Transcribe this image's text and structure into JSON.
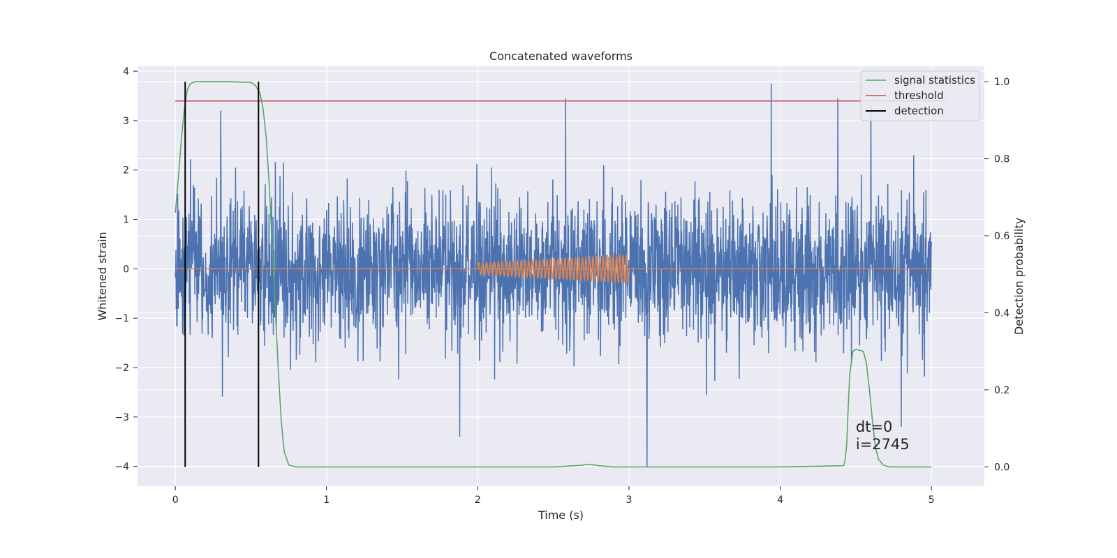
{
  "chart_data": {
    "type": "line",
    "title": "Concatenated waveforms",
    "xlabel": "Time (s)",
    "ylabel": "Whitened strain",
    "y2label": "Detection probability",
    "xlim": [
      -0.25,
      5.35
    ],
    "ylim": [
      -4.4,
      4.1
    ],
    "y2lim": [
      -0.05,
      1.04
    ],
    "x_ticks": [
      0,
      1,
      2,
      3,
      4,
      5
    ],
    "y_ticks": [
      -4,
      -3,
      -2,
      -1,
      0,
      1,
      2,
      3,
      4
    ],
    "y2_ticks": [
      0.0,
      0.2,
      0.4,
      0.6,
      0.8,
      1.0
    ],
    "y2_tick_labels": [
      "0.0",
      "0.2",
      "0.4",
      "0.6",
      "0.8",
      "1.0"
    ],
    "grid": true,
    "legend_position": "top-right",
    "annotations": [
      "dt=0",
      "i=2745"
    ],
    "colors": {
      "background": "#eaeaf2",
      "grid": "#ffffff",
      "strain": "#4c72b0",
      "injection": "#dd8452",
      "signal_statistics": "#55a868",
      "threshold": "#c44e52",
      "detection": "#000000"
    },
    "series": [
      {
        "name": "",
        "axis": "left",
        "kind": "noise",
        "x_range": [
          0,
          5
        ],
        "typical_amplitude": 2.0,
        "notable_peaks": [
          [
            0.3,
            3.2
          ],
          [
            2.58,
            3.45
          ],
          [
            3.94,
            3.75
          ],
          [
            4.38,
            3.45
          ],
          [
            4.6,
            3.3
          ],
          [
            1.88,
            -3.4
          ],
          [
            3.12,
            -4.0
          ],
          [
            4.8,
            -3.2
          ]
        ]
      },
      {
        "name": "",
        "axis": "left",
        "kind": "chirp",
        "x_range": [
          2.0,
          3.0
        ],
        "amplitude_start": 0.12,
        "amplitude_end": 0.28,
        "baseline": 0
      },
      {
        "name": "signal statistics",
        "axis": "right",
        "x": [
          0.0,
          0.02,
          0.04,
          0.06,
          0.08,
          0.1,
          0.13,
          0.2,
          0.35,
          0.5,
          0.53,
          0.56,
          0.58,
          0.6,
          0.62,
          0.64,
          0.66,
          0.68,
          0.7,
          0.72,
          0.75,
          0.8,
          1.0,
          1.5,
          2.0,
          2.5,
          2.68,
          2.74,
          2.8,
          2.9,
          3.5,
          4.0,
          4.42,
          4.43,
          4.44,
          4.45,
          4.46,
          4.48,
          4.5,
          4.55,
          4.57,
          4.59,
          4.61,
          4.63,
          4.65,
          4.68,
          4.72,
          4.8,
          5.0
        ],
        "y": [
          0.66,
          0.75,
          0.85,
          0.93,
          0.98,
          0.995,
          1.0,
          1.0,
          1.0,
          0.998,
          0.99,
          0.97,
          0.93,
          0.86,
          0.74,
          0.58,
          0.42,
          0.26,
          0.12,
          0.04,
          0.005,
          0.0,
          0.0,
          0.0,
          0.0,
          0.0,
          0.004,
          0.007,
          0.003,
          0.0,
          0.0,
          0.0,
          0.003,
          0.02,
          0.06,
          0.16,
          0.24,
          0.3,
          0.305,
          0.3,
          0.27,
          0.2,
          0.12,
          0.05,
          0.02,
          0.005,
          0.0,
          0.0,
          0.0
        ]
      },
      {
        "name": "threshold",
        "axis": "right",
        "x": [
          0,
          5.1
        ],
        "y": [
          0.95,
          0.95
        ]
      },
      {
        "name": "detection",
        "axis": "right",
        "vertical_lines_x": [
          0.065,
          0.55
        ]
      }
    ]
  }
}
